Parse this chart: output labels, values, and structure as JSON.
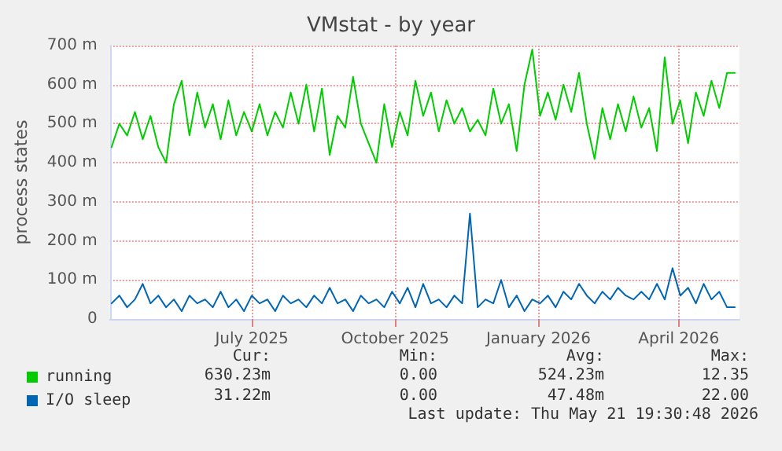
{
  "chart_data": {
    "type": "line",
    "title": "VMstat - by year",
    "ylabel": "process states",
    "x": [
      "2025-04-16",
      "2025-04-21",
      "2025-04-26",
      "2025-05-01",
      "2025-05-06",
      "2025-05-11",
      "2025-05-16",
      "2025-05-21",
      "2025-05-26",
      "2025-05-31",
      "2025-06-05",
      "2025-06-10",
      "2025-06-15",
      "2025-06-20",
      "2025-06-25",
      "2025-06-30",
      "2025-07-05",
      "2025-07-10",
      "2025-07-15",
      "2025-07-20",
      "2025-07-25",
      "2025-07-30",
      "2025-08-04",
      "2025-08-09",
      "2025-08-14",
      "2025-08-19",
      "2025-08-24",
      "2025-08-29",
      "2025-09-03",
      "2025-09-08",
      "2025-09-13",
      "2025-09-18",
      "2025-09-23",
      "2025-09-28",
      "2025-10-03",
      "2025-10-08",
      "2025-10-13",
      "2025-10-18",
      "2025-10-23",
      "2025-10-28",
      "2025-11-02",
      "2025-11-07",
      "2025-11-12",
      "2025-11-17",
      "2025-11-22",
      "2025-11-27",
      "2025-12-02",
      "2025-12-07",
      "2025-12-12",
      "2025-12-17",
      "2025-12-22",
      "2025-12-27",
      "2026-01-01",
      "2026-01-06",
      "2026-01-11",
      "2026-01-16",
      "2026-01-21",
      "2026-01-26",
      "2026-01-31",
      "2026-02-05",
      "2026-02-10",
      "2026-02-15",
      "2026-02-20",
      "2026-02-25",
      "2026-03-02",
      "2026-03-07",
      "2026-03-12",
      "2026-03-17",
      "2026-03-22",
      "2026-03-27",
      "2026-04-01",
      "2026-04-06",
      "2026-04-11",
      "2026-04-16",
      "2026-04-21",
      "2026-04-26",
      "2026-05-01",
      "2026-05-06",
      "2026-05-11",
      "2026-05-16",
      "2026-05-21"
    ],
    "series": [
      {
        "name": "running",
        "color": "#00cc00",
        "values": [
          440,
          500,
          470,
          530,
          460,
          520,
          440,
          400,
          550,
          610,
          470,
          580,
          490,
          550,
          460,
          560,
          470,
          530,
          480,
          550,
          470,
          530,
          490,
          580,
          500,
          600,
          480,
          590,
          420,
          520,
          490,
          620,
          500,
          450,
          400,
          550,
          440,
          530,
          470,
          610,
          520,
          580,
          480,
          560,
          500,
          540,
          480,
          510,
          470,
          590,
          500,
          550,
          430,
          600,
          690,
          520,
          580,
          510,
          600,
          530,
          630,
          500,
          410,
          540,
          460,
          550,
          480,
          570,
          490,
          540,
          430,
          670,
          500,
          560,
          450,
          580,
          520,
          610,
          540,
          630,
          630
        ]
      },
      {
        "name": "I/O sleep",
        "color": "#0066b3",
        "values": [
          40,
          60,
          30,
          50,
          90,
          40,
          60,
          30,
          50,
          20,
          60,
          40,
          50,
          30,
          70,
          30,
          50,
          20,
          60,
          40,
          50,
          20,
          60,
          40,
          50,
          30,
          60,
          40,
          80,
          40,
          50,
          20,
          60,
          40,
          50,
          30,
          70,
          40,
          80,
          30,
          90,
          40,
          50,
          30,
          60,
          40,
          270,
          30,
          50,
          40,
          100,
          30,
          60,
          20,
          50,
          40,
          60,
          30,
          70,
          50,
          90,
          60,
          40,
          70,
          50,
          80,
          60,
          50,
          70,
          50,
          90,
          50,
          130,
          60,
          80,
          40,
          90,
          50,
          70,
          30,
          30
        ]
      }
    ],
    "xlim": [
      "2025-04-15",
      "2026-05-24"
    ],
    "xticks": [
      {
        "value": "2025-07-15",
        "label": "July 2025"
      },
      {
        "value": "2025-10-15",
        "label": "October 2025"
      },
      {
        "value": "2026-01-15",
        "label": "January 2026"
      },
      {
        "value": "2026-04-15",
        "label": "April 2026"
      }
    ],
    "ylim": [
      0,
      700
    ],
    "yticks": [
      0,
      {
        "value": 100,
        "label": "100 m"
      },
      {
        "value": 200,
        "label": "200 m"
      },
      {
        "value": 300,
        "label": "300 m"
      },
      {
        "value": 400,
        "label": "400 m"
      },
      {
        "value": 500,
        "label": "500 m"
      },
      {
        "value": 600,
        "label": "600 m"
      },
      {
        "value": 700,
        "label": "700 m"
      }
    ],
    "grid": true,
    "legend": "bottom left",
    "marker": "none",
    "line_style": "solid",
    "annotations": [
      "Cur:",
      "Min:",
      "Avg:",
      "Max:",
      "630.23m",
      "0.00",
      "524.23m",
      "12.35",
      "31.22m",
      "0.00",
      "47.48m",
      "22.00",
      "Last update: Thu May 21 19:30:48 2026"
    ]
  }
}
